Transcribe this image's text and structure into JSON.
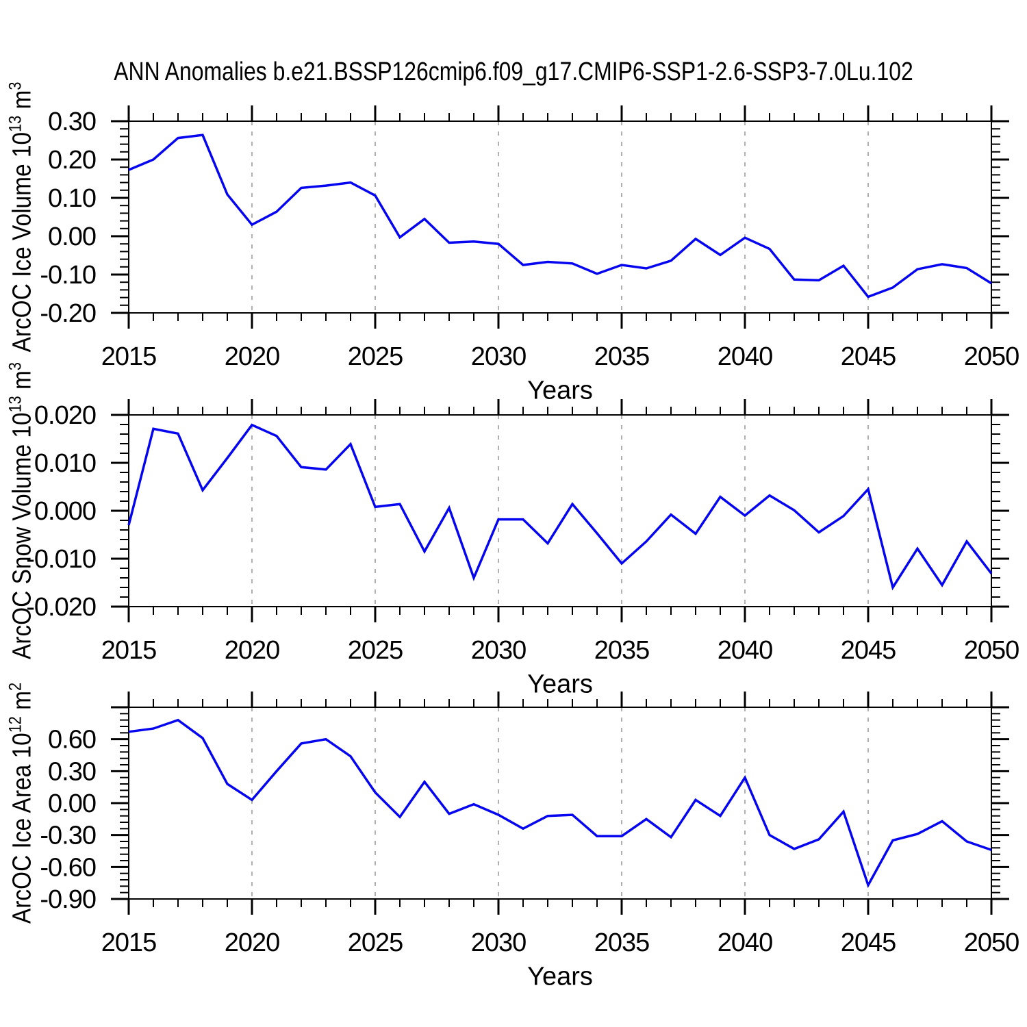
{
  "title": "ANN Anomalies b.e21.BSSP126cmip6.f09_g17.CMIP6-SSP1-2.6-SSP3-7.0Lu.102",
  "colors": {
    "line": "#0505EF",
    "grid": "#b0b0b0",
    "axis": "#000000"
  },
  "chart_data": [
    {
      "name": "ice-volume",
      "type": "line",
      "ylabel_base": "ArcOC Ice Volume 10",
      "ylabel_sup": "13",
      "ylabel_unit": " m",
      "ylabel_unit_sup": "3",
      "xlabel": "Years",
      "ylim": [
        -0.2,
        0.3
      ],
      "ytick_values": [
        0.3,
        0.2,
        0.1,
        0.0,
        -0.1,
        -0.2
      ],
      "ytick_labels": [
        "0.30",
        "0.20",
        "0.10",
        "0.00",
        "-0.10",
        "-0.20"
      ],
      "ytick_minor_step": 0.02,
      "xlim": [
        2015,
        2050
      ],
      "xtick_values": [
        2015,
        2020,
        2025,
        2030,
        2035,
        2040,
        2045,
        2050
      ],
      "xtick_labels": [
        "2015",
        "2020",
        "2025",
        "2030",
        "2035",
        "2040",
        "2045",
        "2050"
      ],
      "grid_years": [
        2020,
        2025,
        2030,
        2035,
        2040,
        2045
      ],
      "x": [
        2015,
        2016,
        2017,
        2018,
        2019,
        2020,
        2021,
        2022,
        2023,
        2024,
        2025,
        2026,
        2027,
        2028,
        2029,
        2030,
        2031,
        2032,
        2033,
        2034,
        2035,
        2036,
        2037,
        2038,
        2039,
        2040,
        2041,
        2042,
        2043,
        2044,
        2045,
        2046,
        2047,
        2048,
        2049,
        2050
      ],
      "values": [
        0.173,
        0.2,
        0.256,
        0.264,
        0.109,
        0.03,
        0.064,
        0.126,
        0.132,
        0.14,
        0.106,
        -0.003,
        0.045,
        -0.017,
        -0.014,
        -0.02,
        -0.075,
        -0.067,
        -0.071,
        -0.098,
        -0.075,
        -0.084,
        -0.064,
        -0.007,
        -0.049,
        -0.004,
        -0.033,
        -0.113,
        -0.115,
        -0.077,
        -0.158,
        -0.134,
        -0.086,
        -0.073,
        -0.083,
        -0.123
      ]
    },
    {
      "name": "snow-volume",
      "type": "line",
      "ylabel_base": "ArcOC Snow Volume 10",
      "ylabel_sup": "13",
      "ylabel_unit": " m",
      "ylabel_unit_sup": "3",
      "xlabel": "Years",
      "ylim": [
        -0.02,
        0.02
      ],
      "ytick_values": [
        0.02,
        0.01,
        0.0,
        -0.01,
        -0.02
      ],
      "ytick_labels": [
        "0.020",
        "0.010",
        "0.000",
        "-0.010",
        "-0.020"
      ],
      "ytick_minor_step": 0.002,
      "xlim": [
        2015,
        2050
      ],
      "xtick_values": [
        2015,
        2020,
        2025,
        2030,
        2035,
        2040,
        2045,
        2050
      ],
      "xtick_labels": [
        "2015",
        "2020",
        "2025",
        "2030",
        "2035",
        "2040",
        "2045",
        "2050"
      ],
      "grid_years": [
        2020,
        2025,
        2030,
        2035,
        2040,
        2045
      ],
      "x": [
        2015,
        2016,
        2017,
        2018,
        2019,
        2020,
        2021,
        2022,
        2023,
        2024,
        2025,
        2026,
        2027,
        2028,
        2029,
        2030,
        2031,
        2032,
        2033,
        2034,
        2035,
        2036,
        2037,
        2038,
        2039,
        2040,
        2041,
        2042,
        2043,
        2044,
        2045,
        2046,
        2047,
        2048,
        2049,
        2050
      ],
      "values": [
        -0.003,
        0.0171,
        0.0161,
        0.0043,
        0.011,
        0.0179,
        0.0156,
        0.0091,
        0.0086,
        0.0139,
        0.0008,
        0.0014,
        -0.0085,
        0.0006,
        -0.014,
        -0.0018,
        -0.0018,
        -0.0068,
        0.0014,
        -0.0047,
        -0.011,
        -0.0064,
        -0.0008,
        -0.0048,
        0.0029,
        -0.001,
        0.0032,
        0.0001,
        -0.0045,
        -0.0011,
        0.0045,
        -0.016,
        -0.0079,
        -0.0155,
        -0.0064,
        -0.0131
      ]
    },
    {
      "name": "ice-area",
      "type": "line",
      "ylabel_base": "ArcOC Ice Area 10",
      "ylabel_sup": "12",
      "ylabel_unit": " m",
      "ylabel_unit_sup": "2",
      "xlabel": "Years",
      "ylim": [
        -0.9,
        0.9
      ],
      "ytick_values": [
        0.6,
        0.3,
        0.0,
        -0.3,
        -0.6,
        -0.9
      ],
      "ytick_labels": [
        "0.60",
        "0.30",
        "0.00",
        "-0.30",
        "-0.60",
        "-0.90"
      ],
      "ytick_minor_step": 0.06,
      "xlim": [
        2015,
        2050
      ],
      "xtick_values": [
        2015,
        2020,
        2025,
        2030,
        2035,
        2040,
        2045,
        2050
      ],
      "xtick_labels": [
        "2015",
        "2020",
        "2025",
        "2030",
        "2035",
        "2040",
        "2045",
        "2050"
      ],
      "grid_years": [
        2020,
        2025,
        2030,
        2035,
        2040,
        2045
      ],
      "x": [
        2015,
        2016,
        2017,
        2018,
        2019,
        2020,
        2021,
        2022,
        2023,
        2024,
        2025,
        2026,
        2027,
        2028,
        2029,
        2030,
        2031,
        2032,
        2033,
        2034,
        2035,
        2036,
        2037,
        2038,
        2039,
        2040,
        2041,
        2042,
        2043,
        2044,
        2045,
        2046,
        2047,
        2048,
        2049,
        2050
      ],
      "values": [
        0.67,
        0.7,
        0.78,
        0.61,
        0.18,
        0.03,
        0.3,
        0.56,
        0.6,
        0.44,
        0.1,
        -0.13,
        0.2,
        -0.1,
        -0.01,
        -0.11,
        -0.24,
        -0.12,
        -0.11,
        -0.31,
        -0.31,
        -0.15,
        -0.32,
        0.03,
        -0.12,
        0.24,
        -0.3,
        -0.43,
        -0.34,
        -0.08,
        -0.77,
        -0.35,
        -0.29,
        -0.17,
        -0.36,
        -0.44
      ]
    }
  ]
}
